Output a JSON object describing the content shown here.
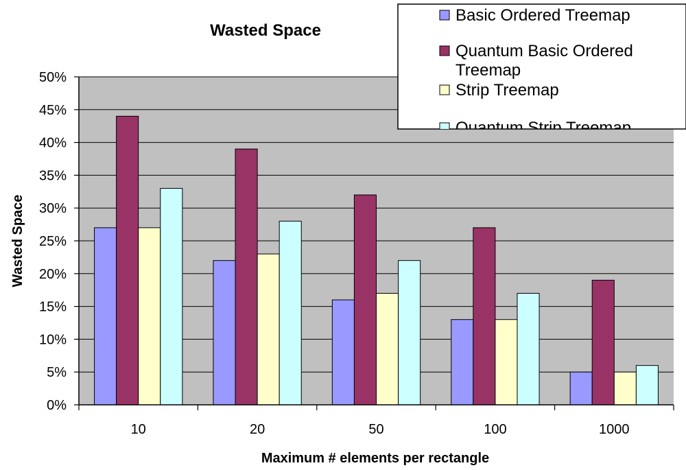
{
  "chart_data": {
    "type": "bar",
    "title": "Wasted Space",
    "xlabel": "Maximum # elements per rectangle",
    "ylabel": "Wasted Space",
    "categories": [
      "10",
      "20",
      "50",
      "100",
      "1000"
    ],
    "ylim": [
      0,
      0.5
    ],
    "yticks": [
      "0%",
      "5%",
      "10%",
      "15%",
      "20%",
      "25%",
      "30%",
      "35%",
      "40%",
      "45%",
      "50%"
    ],
    "grid": true,
    "legend_position": "top-right",
    "series": [
      {
        "name": "Basic Ordered Treemap",
        "color": "#9999ff",
        "values": [
          0.27,
          0.22,
          0.16,
          0.13,
          0.05
        ]
      },
      {
        "name": "Quantum Basic Ordered Treemap",
        "color": "#993366",
        "values": [
          0.44,
          0.39,
          0.32,
          0.27,
          0.19
        ]
      },
      {
        "name": "Strip Treemap",
        "color": "#ffffcc",
        "values": [
          0.27,
          0.23,
          0.17,
          0.13,
          0.05
        ]
      },
      {
        "name": "Quantum Strip Treemap",
        "color": "#ccffff",
        "values": [
          0.33,
          0.28,
          0.22,
          0.17,
          0.06
        ]
      }
    ],
    "plot_background": "#c0c0c0"
  }
}
